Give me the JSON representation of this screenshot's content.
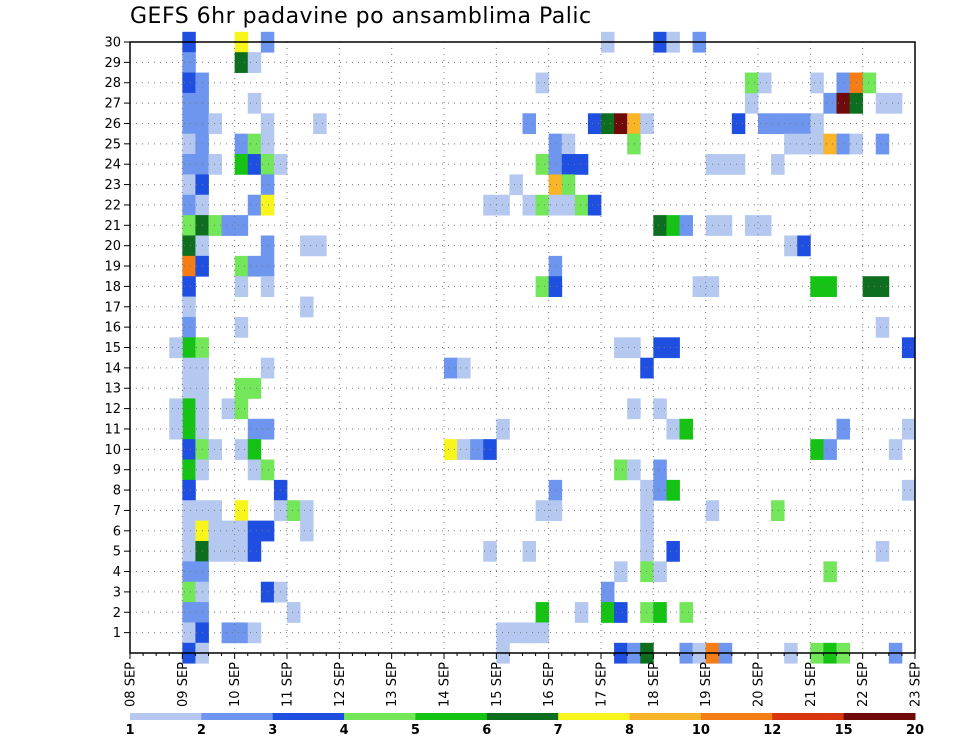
{
  "chart_data": {
    "type": "heatmap",
    "title": "GEFS 6hr padavine po ansamblima Palic",
    "xlabel": "",
    "ylabel": "",
    "x_ticks": [
      "08 SEP",
      "09 SEP",
      "10 SEP",
      "11 SEP",
      "12 SEP",
      "13 SEP",
      "14 SEP",
      "15 SEP",
      "16 SEP",
      "17 SEP",
      "18 SEP",
      "19 SEP",
      "20 SEP",
      "21 SEP",
      "22 SEP",
      "23 SEP"
    ],
    "x_range_days": [
      8,
      23
    ],
    "y_ticks": [
      "1",
      "2",
      "3",
      "4",
      "5",
      "6",
      "7",
      "8",
      "9",
      "10",
      "11",
      "12",
      "13",
      "14",
      "15",
      "16",
      "17",
      "18",
      "19",
      "20",
      "21",
      "22",
      "23",
      "24",
      "25",
      "26",
      "27",
      "28",
      "29",
      "30"
    ],
    "y_range": [
      0,
      30
    ],
    "grid": true,
    "colorbar": {
      "labels": [
        "1",
        "2",
        "3",
        "4",
        "5",
        "6",
        "7",
        "8",
        "10",
        "12",
        "15",
        "20"
      ],
      "colors": [
        "#b4c8f0",
        "#6e96ee",
        "#1f4fe0",
        "#73e65a",
        "#14c314",
        "#0c6e1e",
        "#f8f51c",
        "#f9b428",
        "#f57d16",
        "#d93610",
        "#6e0a0a"
      ]
    },
    "cells": [
      [
        9.0,
        30,
        3
      ],
      [
        9.0,
        29,
        2
      ],
      [
        9.0,
        28,
        3
      ],
      [
        9.0,
        27,
        2
      ],
      [
        9.0,
        26,
        2
      ],
      [
        9.0,
        25,
        1
      ],
      [
        9.0,
        24,
        2
      ],
      [
        9.0,
        23,
        1
      ],
      [
        9.0,
        22,
        2
      ],
      [
        9.0,
        21,
        4
      ],
      [
        9.0,
        20,
        6
      ],
      [
        9.0,
        19,
        9
      ],
      [
        9.0,
        18,
        3
      ],
      [
        9.0,
        17,
        1
      ],
      [
        9.0,
        16,
        2
      ],
      [
        9.0,
        15,
        5
      ],
      [
        9.0,
        14,
        1
      ],
      [
        9.0,
        13,
        1
      ],
      [
        9.0,
        12,
        5
      ],
      [
        9.0,
        11,
        5
      ],
      [
        9.0,
        10,
        3
      ],
      [
        9.0,
        9,
        5
      ],
      [
        9.0,
        8,
        3
      ],
      [
        9.0,
        7,
        1
      ],
      [
        9.0,
        6,
        1
      ],
      [
        9.0,
        5,
        1
      ],
      [
        9.0,
        4,
        2
      ],
      [
        9.0,
        3,
        4
      ],
      [
        9.0,
        2,
        2
      ],
      [
        9.0,
        1,
        1
      ],
      [
        9.0,
        0,
        3
      ],
      [
        8.75,
        15,
        1
      ],
      [
        8.75,
        12,
        1
      ],
      [
        8.75,
        11,
        1
      ],
      [
        9.25,
        28,
        2
      ],
      [
        9.25,
        27,
        2
      ],
      [
        9.25,
        26,
        2
      ],
      [
        9.25,
        25,
        2
      ],
      [
        9.25,
        24,
        2
      ],
      [
        9.25,
        23,
        3
      ],
      [
        9.25,
        22,
        1
      ],
      [
        9.25,
        21,
        6
      ],
      [
        9.25,
        20,
        1
      ],
      [
        9.25,
        19,
        3
      ],
      [
        9.25,
        15,
        4
      ],
      [
        9.25,
        14,
        1
      ],
      [
        9.25,
        13,
        1
      ],
      [
        9.25,
        12,
        1
      ],
      [
        9.25,
        11,
        1
      ],
      [
        9.25,
        10,
        4
      ],
      [
        9.25,
        9,
        1
      ],
      [
        9.25,
        7,
        1
      ],
      [
        9.25,
        6,
        7
      ],
      [
        9.25,
        5,
        6
      ],
      [
        9.25,
        4,
        2
      ],
      [
        9.25,
        3,
        1
      ],
      [
        9.25,
        2,
        2
      ],
      [
        9.25,
        1,
        3
      ],
      [
        9.25,
        0,
        1
      ],
      [
        9.5,
        26,
        1
      ],
      [
        9.5,
        24,
        1
      ],
      [
        9.5,
        21,
        4
      ],
      [
        9.5,
        10,
        1
      ],
      [
        9.5,
        7,
        1
      ],
      [
        9.5,
        6,
        1
      ],
      [
        9.5,
        5,
        1
      ],
      [
        9.75,
        21,
        2
      ],
      [
        9.75,
        12,
        1
      ],
      [
        9.75,
        6,
        1
      ],
      [
        9.75,
        5,
        1
      ],
      [
        9.75,
        1,
        2
      ],
      [
        10.0,
        30,
        7
      ],
      [
        10.0,
        29,
        6
      ],
      [
        10.0,
        25,
        2
      ],
      [
        10.0,
        24,
        5
      ],
      [
        10.0,
        21,
        2
      ],
      [
        10.0,
        19,
        4
      ],
      [
        10.0,
        18,
        1
      ],
      [
        10.0,
        16,
        1
      ],
      [
        10.0,
        13,
        4
      ],
      [
        10.0,
        12,
        4
      ],
      [
        10.0,
        10,
        1
      ],
      [
        10.0,
        7,
        7
      ],
      [
        10.0,
        6,
        1
      ],
      [
        10.0,
        5,
        1
      ],
      [
        10.0,
        1,
        2
      ],
      [
        10.25,
        29,
        1
      ],
      [
        10.25,
        27,
        1
      ],
      [
        10.25,
        25,
        4
      ],
      [
        10.25,
        24,
        3
      ],
      [
        10.25,
        22,
        2
      ],
      [
        10.25,
        19,
        2
      ],
      [
        10.25,
        13,
        4
      ],
      [
        10.25,
        11,
        2
      ],
      [
        10.25,
        10,
        5
      ],
      [
        10.25,
        9,
        1
      ],
      [
        10.25,
        6,
        3
      ],
      [
        10.25,
        5,
        3
      ],
      [
        10.25,
        1,
        1
      ],
      [
        10.5,
        30,
        2
      ],
      [
        10.5,
        26,
        1
      ],
      [
        10.5,
        25,
        1
      ],
      [
        10.5,
        24,
        4
      ],
      [
        10.5,
        23,
        2
      ],
      [
        10.5,
        22,
        7
      ],
      [
        10.5,
        20,
        2
      ],
      [
        10.5,
        19,
        2
      ],
      [
        10.5,
        18,
        1
      ],
      [
        10.5,
        14,
        1
      ],
      [
        10.5,
        11,
        2
      ],
      [
        10.5,
        9,
        4
      ],
      [
        10.5,
        6,
        3
      ],
      [
        10.5,
        3,
        3
      ],
      [
        10.75,
        24,
        1
      ],
      [
        10.75,
        8,
        3
      ],
      [
        10.75,
        7,
        1
      ],
      [
        10.75,
        3,
        1
      ],
      [
        11.0,
        7,
        4
      ],
      [
        11.0,
        2,
        1
      ],
      [
        11.25,
        20,
        1
      ],
      [
        11.25,
        17,
        1
      ],
      [
        11.25,
        7,
        1
      ],
      [
        11.25,
        6,
        1
      ],
      [
        11.5,
        26,
        1
      ],
      [
        11.5,
        20,
        1
      ],
      [
        14.0,
        14,
        2
      ],
      [
        14.0,
        10,
        7
      ],
      [
        14.25,
        14,
        1
      ],
      [
        14.25,
        10,
        1
      ],
      [
        14.5,
        10,
        2
      ],
      [
        14.75,
        22,
        1
      ],
      [
        14.75,
        10,
        3
      ],
      [
        14.75,
        5,
        1
      ],
      [
        15.0,
        22,
        1
      ],
      [
        15.0,
        11,
        1
      ],
      [
        15.0,
        1,
        1
      ],
      [
        15.0,
        0,
        1
      ],
      [
        15.25,
        23,
        1
      ],
      [
        15.25,
        1,
        1
      ],
      [
        15.5,
        26,
        2
      ],
      [
        15.5,
        22,
        1
      ],
      [
        15.5,
        5,
        1
      ],
      [
        15.5,
        1,
        1
      ],
      [
        15.75,
        28,
        1
      ],
      [
        15.75,
        24,
        4
      ],
      [
        15.75,
        22,
        4
      ],
      [
        15.75,
        18,
        4
      ],
      [
        15.75,
        7,
        1
      ],
      [
        15.75,
        2,
        5
      ],
      [
        15.75,
        1,
        1
      ],
      [
        16.0,
        25,
        2
      ],
      [
        16.0,
        24,
        2
      ],
      [
        16.0,
        23,
        8
      ],
      [
        16.0,
        22,
        1
      ],
      [
        16.0,
        19,
        2
      ],
      [
        16.0,
        18,
        3
      ],
      [
        16.0,
        8,
        2
      ],
      [
        16.0,
        7,
        1
      ],
      [
        16.25,
        25,
        1
      ],
      [
        16.25,
        24,
        3
      ],
      [
        16.25,
        23,
        4
      ],
      [
        16.25,
        22,
        1
      ],
      [
        16.5,
        24,
        3
      ],
      [
        16.5,
        22,
        4
      ],
      [
        16.5,
        2,
        1
      ],
      [
        16.75,
        22,
        3
      ],
      [
        16.75,
        26,
        3
      ],
      [
        17.0,
        30,
        1
      ],
      [
        17.0,
        26,
        6
      ],
      [
        17.0,
        3,
        2
      ],
      [
        17.0,
        2,
        5
      ],
      [
        17.25,
        26,
        11
      ],
      [
        17.25,
        15,
        1
      ],
      [
        17.25,
        9,
        4
      ],
      [
        17.25,
        4,
        1
      ],
      [
        17.25,
        2,
        3
      ],
      [
        17.25,
        0,
        3
      ],
      [
        17.5,
        26,
        8
      ],
      [
        17.5,
        25,
        4
      ],
      [
        17.5,
        15,
        1
      ],
      [
        17.5,
        12,
        1
      ],
      [
        17.5,
        9,
        1
      ],
      [
        17.5,
        0,
        2
      ],
      [
        17.75,
        26,
        1
      ],
      [
        17.75,
        14,
        3
      ],
      [
        17.75,
        8,
        1
      ],
      [
        17.75,
        7,
        1
      ],
      [
        17.75,
        6,
        1
      ],
      [
        17.75,
        5,
        1
      ],
      [
        17.75,
        4,
        4
      ],
      [
        17.75,
        2,
        4
      ],
      [
        17.75,
        0,
        6
      ],
      [
        18.0,
        30,
        3
      ],
      [
        18.0,
        21,
        6
      ],
      [
        18.0,
        15,
        3
      ],
      [
        18.0,
        12,
        1
      ],
      [
        18.0,
        9,
        2
      ],
      [
        18.0,
        8,
        2
      ],
      [
        18.0,
        4,
        1
      ],
      [
        18.0,
        2,
        5
      ],
      [
        18.25,
        30,
        1
      ],
      [
        18.25,
        21,
        5
      ],
      [
        18.25,
        15,
        3
      ],
      [
        18.25,
        11,
        1
      ],
      [
        18.25,
        8,
        5
      ],
      [
        18.25,
        5,
        3
      ],
      [
        18.5,
        21,
        2
      ],
      [
        18.5,
        11,
        5
      ],
      [
        18.5,
        2,
        4
      ],
      [
        18.5,
        0,
        2
      ],
      [
        18.75,
        30,
        2
      ],
      [
        18.75,
        18,
        1
      ],
      [
        18.75,
        0,
        1
      ],
      [
        19.0,
        18,
        1
      ],
      [
        19.0,
        24,
        1
      ],
      [
        19.0,
        21,
        1
      ],
      [
        19.0,
        7,
        1
      ],
      [
        19.0,
        0,
        9
      ],
      [
        19.25,
        24,
        1
      ],
      [
        19.25,
        21,
        1
      ],
      [
        19.25,
        0,
        2
      ],
      [
        19.5,
        24,
        1
      ],
      [
        19.5,
        26,
        3
      ],
      [
        19.75,
        27,
        1
      ],
      [
        19.75,
        28,
        4
      ],
      [
        19.75,
        21,
        1
      ],
      [
        20.0,
        21,
        1
      ],
      [
        20.0,
        26,
        2
      ],
      [
        20.0,
        28,
        1
      ],
      [
        20.25,
        26,
        2
      ],
      [
        20.25,
        24,
        1
      ],
      [
        20.25,
        7,
        4
      ],
      [
        20.5,
        26,
        2
      ],
      [
        20.5,
        25,
        1
      ],
      [
        20.5,
        20,
        1
      ],
      [
        20.5,
        0,
        1
      ],
      [
        20.75,
        26,
        2
      ],
      [
        20.75,
        25,
        1
      ],
      [
        20.75,
        20,
        3
      ],
      [
        21.0,
        28,
        1
      ],
      [
        21.0,
        26,
        1
      ],
      [
        21.0,
        25,
        1
      ],
      [
        21.0,
        18,
        5
      ],
      [
        21.0,
        10,
        5
      ],
      [
        21.0,
        0,
        4
      ],
      [
        21.25,
        27,
        2
      ],
      [
        21.25,
        25,
        8
      ],
      [
        21.25,
        18,
        5
      ],
      [
        21.25,
        10,
        2
      ],
      [
        21.25,
        4,
        4
      ],
      [
        21.25,
        0,
        5
      ],
      [
        21.5,
        28,
        2
      ],
      [
        21.5,
        27,
        12
      ],
      [
        21.5,
        25,
        2
      ],
      [
        21.5,
        11,
        2
      ],
      [
        21.5,
        0,
        4
      ],
      [
        21.75,
        28,
        9
      ],
      [
        21.75,
        27,
        6
      ],
      [
        21.75,
        25,
        1
      ],
      [
        22.0,
        28,
        4
      ],
      [
        22.0,
        18,
        6
      ],
      [
        22.25,
        27,
        1
      ],
      [
        22.25,
        18,
        6
      ],
      [
        22.25,
        25,
        2
      ],
      [
        22.25,
        16,
        1
      ],
      [
        22.25,
        5,
        1
      ],
      [
        22.5,
        27,
        1
      ],
      [
        22.5,
        10,
        1
      ],
      [
        22.5,
        0,
        2
      ],
      [
        22.75,
        15,
        3
      ],
      [
        22.75,
        11,
        1
      ],
      [
        22.75,
        8,
        1
      ]
    ]
  }
}
